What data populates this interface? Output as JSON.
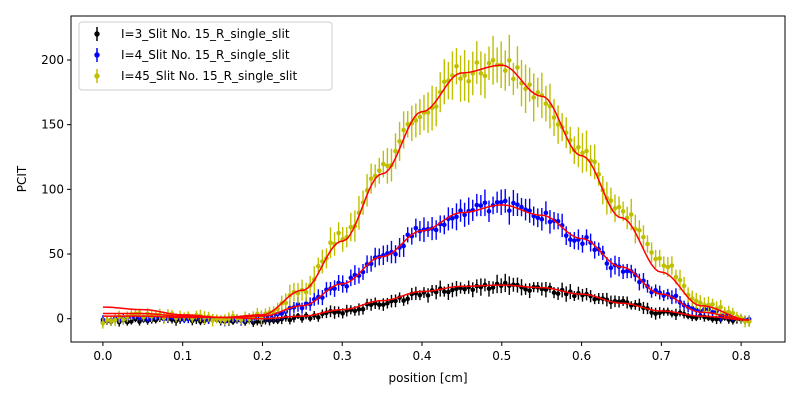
{
  "chart_data": {
    "type": "scatter",
    "title": "",
    "xlabel": "position [cm]",
    "ylabel": "PCIT",
    "xlim": [
      -0.04,
      0.855
    ],
    "ylim": [
      -18,
      234
    ],
    "x_ticks": [
      0.0,
      0.1,
      0.2,
      0.3,
      0.4,
      0.5,
      0.6,
      0.7,
      0.8
    ],
    "x_tick_labels": [
      "0.0",
      "0.1",
      "0.2",
      "0.3",
      "0.4",
      "0.5",
      "0.6",
      "0.7",
      "0.8"
    ],
    "y_ticks": [
      0,
      50,
      100,
      150,
      200
    ],
    "y_tick_labels": [
      "0",
      "50",
      "100",
      "150",
      "200"
    ],
    "grid": false,
    "legend_position": "top-left",
    "x_range": [
      0.0,
      0.81
    ],
    "series": [
      {
        "name": "I=3_Slit No. 15_R_single_slit",
        "color": "#000000",
        "x": [
          0.0,
          0.05,
          0.1,
          0.15,
          0.2,
          0.25,
          0.3,
          0.35,
          0.4,
          0.45,
          0.5,
          0.55,
          0.6,
          0.65,
          0.7,
          0.75,
          0.81
        ],
        "y": [
          -2,
          -1,
          -1,
          -1,
          -2,
          1,
          5,
          12,
          19,
          24,
          25,
          23,
          18,
          12,
          5,
          1,
          -1
        ],
        "error": [
          3,
          3,
          3,
          3,
          3,
          3,
          4,
          4,
          5,
          5,
          6,
          5,
          5,
          4,
          4,
          3,
          3
        ],
        "fit_y": [
          2,
          2,
          1,
          1,
          0,
          2,
          7,
          14,
          21,
          25,
          26,
          24,
          19,
          12,
          6,
          2,
          -1
        ]
      },
      {
        "name": "I=4_Slit No. 15_R_single_slit",
        "color": "#0000ff",
        "x": [
          0.0,
          0.05,
          0.1,
          0.15,
          0.2,
          0.25,
          0.3,
          0.35,
          0.4,
          0.45,
          0.5,
          0.55,
          0.6,
          0.65,
          0.7,
          0.75,
          0.81
        ],
        "y": [
          -1,
          1,
          0,
          -1,
          0,
          10,
          27,
          48,
          68,
          82,
          88,
          79,
          61,
          38,
          20,
          6,
          -1
        ],
        "error": [
          3,
          3,
          3,
          3,
          4,
          5,
          6,
          7,
          8,
          9,
          9,
          8,
          7,
          6,
          5,
          4,
          3
        ],
        "fit_y": [
          4,
          4,
          2,
          1,
          2,
          10,
          27,
          48,
          68,
          82,
          88,
          80,
          62,
          40,
          19,
          5,
          -1
        ]
      },
      {
        "name": "I=45_Slit No. 15_R_single_slit",
        "color": "#bfbf00",
        "x": [
          0.0,
          0.05,
          0.1,
          0.15,
          0.2,
          0.25,
          0.3,
          0.35,
          0.4,
          0.45,
          0.5,
          0.55,
          0.6,
          0.65,
          0.7,
          0.75,
          0.81
        ],
        "y": [
          -2,
          3,
          2,
          0,
          2,
          23,
          64,
          115,
          160,
          190,
          196,
          170,
          128,
          82,
          44,
          12,
          -1
        ],
        "error": [
          4,
          4,
          4,
          4,
          5,
          8,
          10,
          12,
          14,
          16,
          17,
          15,
          13,
          10,
          8,
          6,
          4
        ],
        "fit_y": [
          9,
          7,
          3,
          1,
          3,
          22,
          60,
          112,
          160,
          190,
          196,
          172,
          126,
          78,
          36,
          10,
          -1
        ]
      }
    ]
  }
}
